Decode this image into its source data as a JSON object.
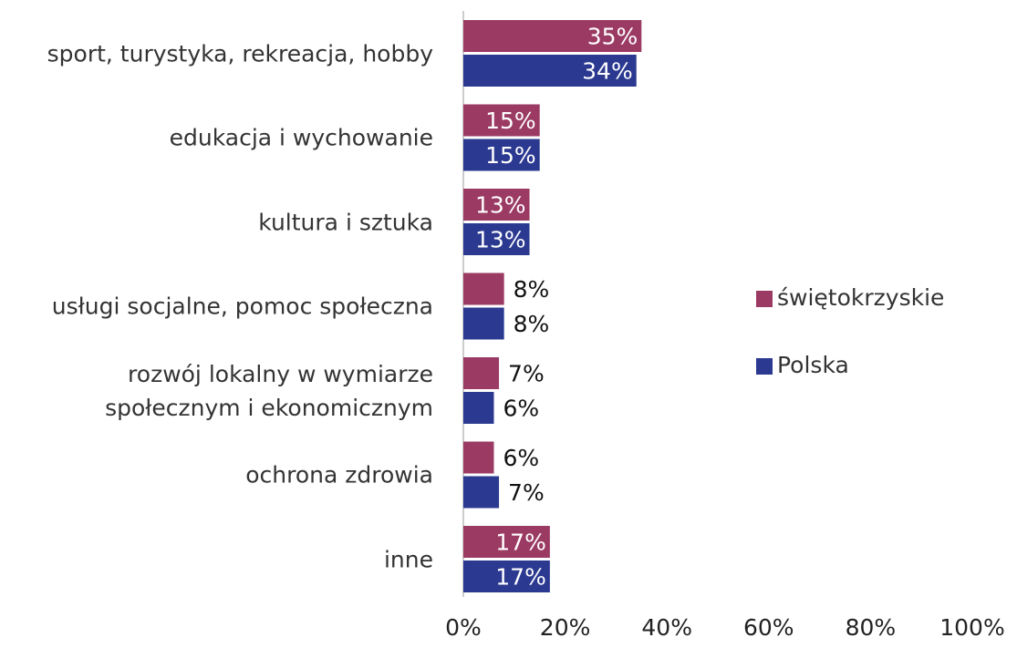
{
  "chart_data": {
    "type": "barh",
    "categories": [
      "sport, turystyka, rekreacja, hobby",
      "edukacja i wychowanie",
      "kultura i sztuka",
      "usługi socjalne, pomoc społeczna",
      "rozwój lokalny w wymiarze \nspołecznym i ekonomicznym",
      "ochrona zdrowia",
      "inne"
    ],
    "series": [
      {
        "name": "świętokrzyskie",
        "color": "#9b3a63",
        "values": [
          35,
          15,
          13,
          8,
          7,
          6,
          17
        ],
        "value_labels": [
          "35%",
          "15%",
          "13%",
          "8%",
          "7%",
          "6%",
          "17%"
        ]
      },
      {
        "name": "Polska",
        "color": "#2b3990",
        "values": [
          34,
          15,
          13,
          8,
          6,
          7,
          17
        ],
        "value_labels": [
          "34%",
          "15%",
          "13%",
          "8%",
          "6%",
          "7%",
          "17%"
        ]
      }
    ],
    "xlim": [
      0,
      100
    ],
    "xticks": [
      {
        "value": 0,
        "label": "0%"
      },
      {
        "value": 20,
        "label": "20%"
      },
      {
        "value": 40,
        "label": "40%"
      },
      {
        "value": 60,
        "label": "60%"
      },
      {
        "value": 80,
        "label": "80%"
      },
      {
        "value": 100,
        "label": "100%"
      }
    ],
    "legend": "right"
  }
}
